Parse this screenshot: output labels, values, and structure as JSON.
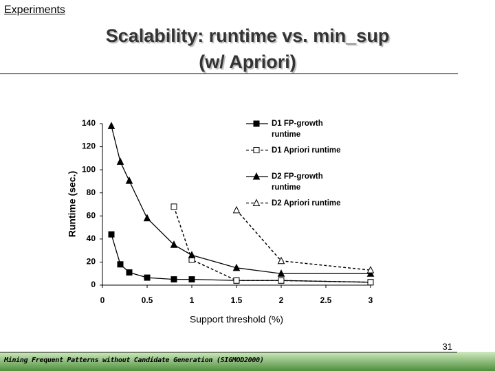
{
  "slide": {
    "topic": "Experiments",
    "title_lines": [
      "Scalability: runtime vs. min_sup",
      "(w/ Apriori)"
    ],
    "page_number": "31",
    "footer": "Mining Frequent Patterns without Candidate Generation (SIGMOD2000)"
  },
  "chart_data": {
    "type": "line",
    "x_label": "Support threshold (%)",
    "y_label": "Runtime (sec.)",
    "x": [
      0.1,
      0.2,
      0.3,
      0.5,
      0.8,
      1,
      1.5,
      2,
      3
    ],
    "series": [
      {
        "name": "D1 FP-growth runtime",
        "color": "#000000",
        "marker": "square",
        "filled": true,
        "dashed": false,
        "values": [
          44,
          18,
          11,
          6.5,
          5,
          5,
          4,
          4,
          2.5
        ]
      },
      {
        "name": "D1 Apriori runtime",
        "color": "#000000",
        "marker": "square",
        "filled": false,
        "dashed": true,
        "values": [
          null,
          null,
          null,
          null,
          68,
          22,
          4,
          4,
          2.5
        ]
      },
      {
        "name": "D2 FP-growth runtime",
        "color": "#000000",
        "marker": "triangle",
        "filled": true,
        "dashed": false,
        "values": [
          138,
          107,
          90.5,
          58,
          35,
          26,
          15,
          10,
          10
        ]
      },
      {
        "name": "D2 Apriori runtime",
        "color": "#000000",
        "marker": "triangle",
        "filled": false,
        "dashed": true,
        "values": [
          null,
          null,
          null,
          null,
          null,
          null,
          65,
          21,
          13
        ]
      }
    ],
    "xlim": [
      0,
      3
    ],
    "xticks": [
      0,
      0.5,
      1,
      1.5,
      2,
      2.5,
      3
    ],
    "ylim": [
      0,
      140
    ],
    "yticks": [
      0,
      20,
      40,
      60,
      80,
      100,
      120,
      140
    ]
  }
}
